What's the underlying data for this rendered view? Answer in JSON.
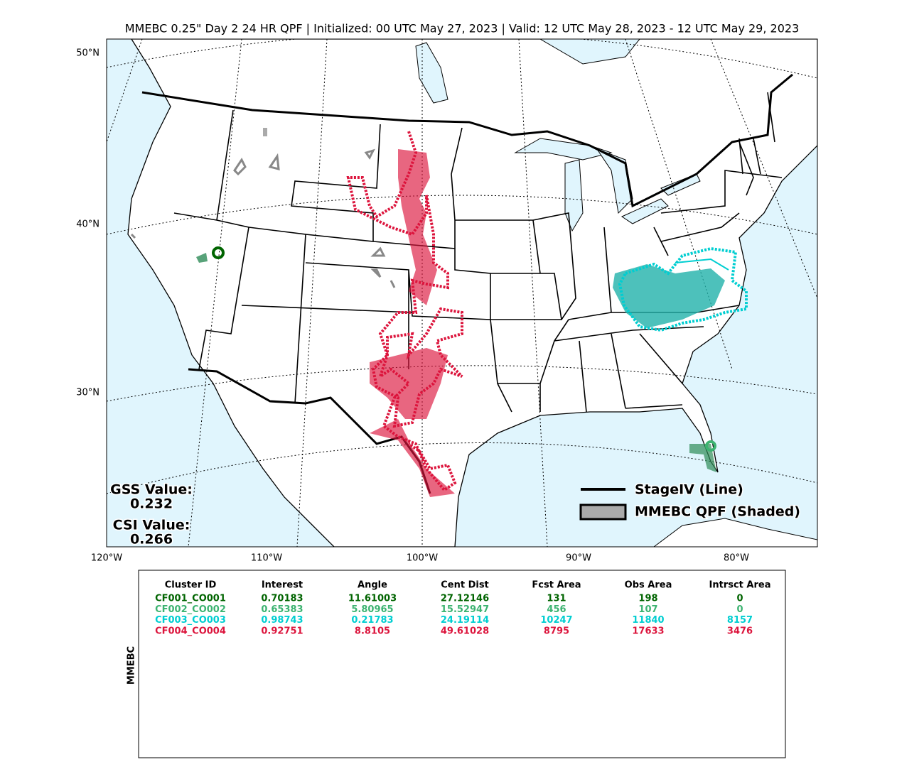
{
  "title": "MMEBC 0.25\" Day 2 24 HR QPF | Initialized: 00 UTC May 27, 2023 | Valid: 12 UTC May 28, 2023 - 12 UTC May 29, 2023",
  "map": {
    "lat_labels": [
      "50°N",
      "40°N",
      "30°N"
    ],
    "lon_labels": [
      "120°W",
      "110°W",
      "100°W",
      "90°W",
      "80°W"
    ]
  },
  "stats": {
    "gss_label": "GSS Value:",
    "gss": "0.232",
    "csi_label": "CSI Value:",
    "csi": "0.266"
  },
  "legend": [
    {
      "label": "StageIV (Line)",
      "color": "#000000"
    },
    {
      "label": "MMEBC QPF (Shaded)",
      "color": "#aaaaaa"
    }
  ],
  "table": {
    "side_label": "MMEBC",
    "columns": [
      "Cluster ID",
      "Interest",
      "Angle",
      "Cent Dist",
      "Fcst Area",
      "Obs Area",
      "Intrsct Area"
    ],
    "rows": [
      {
        "color": "#006400",
        "cells": [
          "CF001_CO001",
          "0.70183",
          "11.61003",
          "27.12146",
          "131",
          "198",
          "0"
        ]
      },
      {
        "color": "#3cb371",
        "cells": [
          "CF002_CO002",
          "0.65383",
          "5.80965",
          "15.52947",
          "456",
          "107",
          "0"
        ]
      },
      {
        "color": "#00ced1",
        "cells": [
          "CF003_CO003",
          "0.98743",
          "0.21783",
          "24.19114",
          "10247",
          "11840",
          "8157"
        ]
      },
      {
        "color": "#dc143c",
        "cells": [
          "CF004_CO004",
          "0.92751",
          "8.8105",
          "49.61028",
          "8795",
          "17633",
          "3476"
        ]
      }
    ]
  }
}
